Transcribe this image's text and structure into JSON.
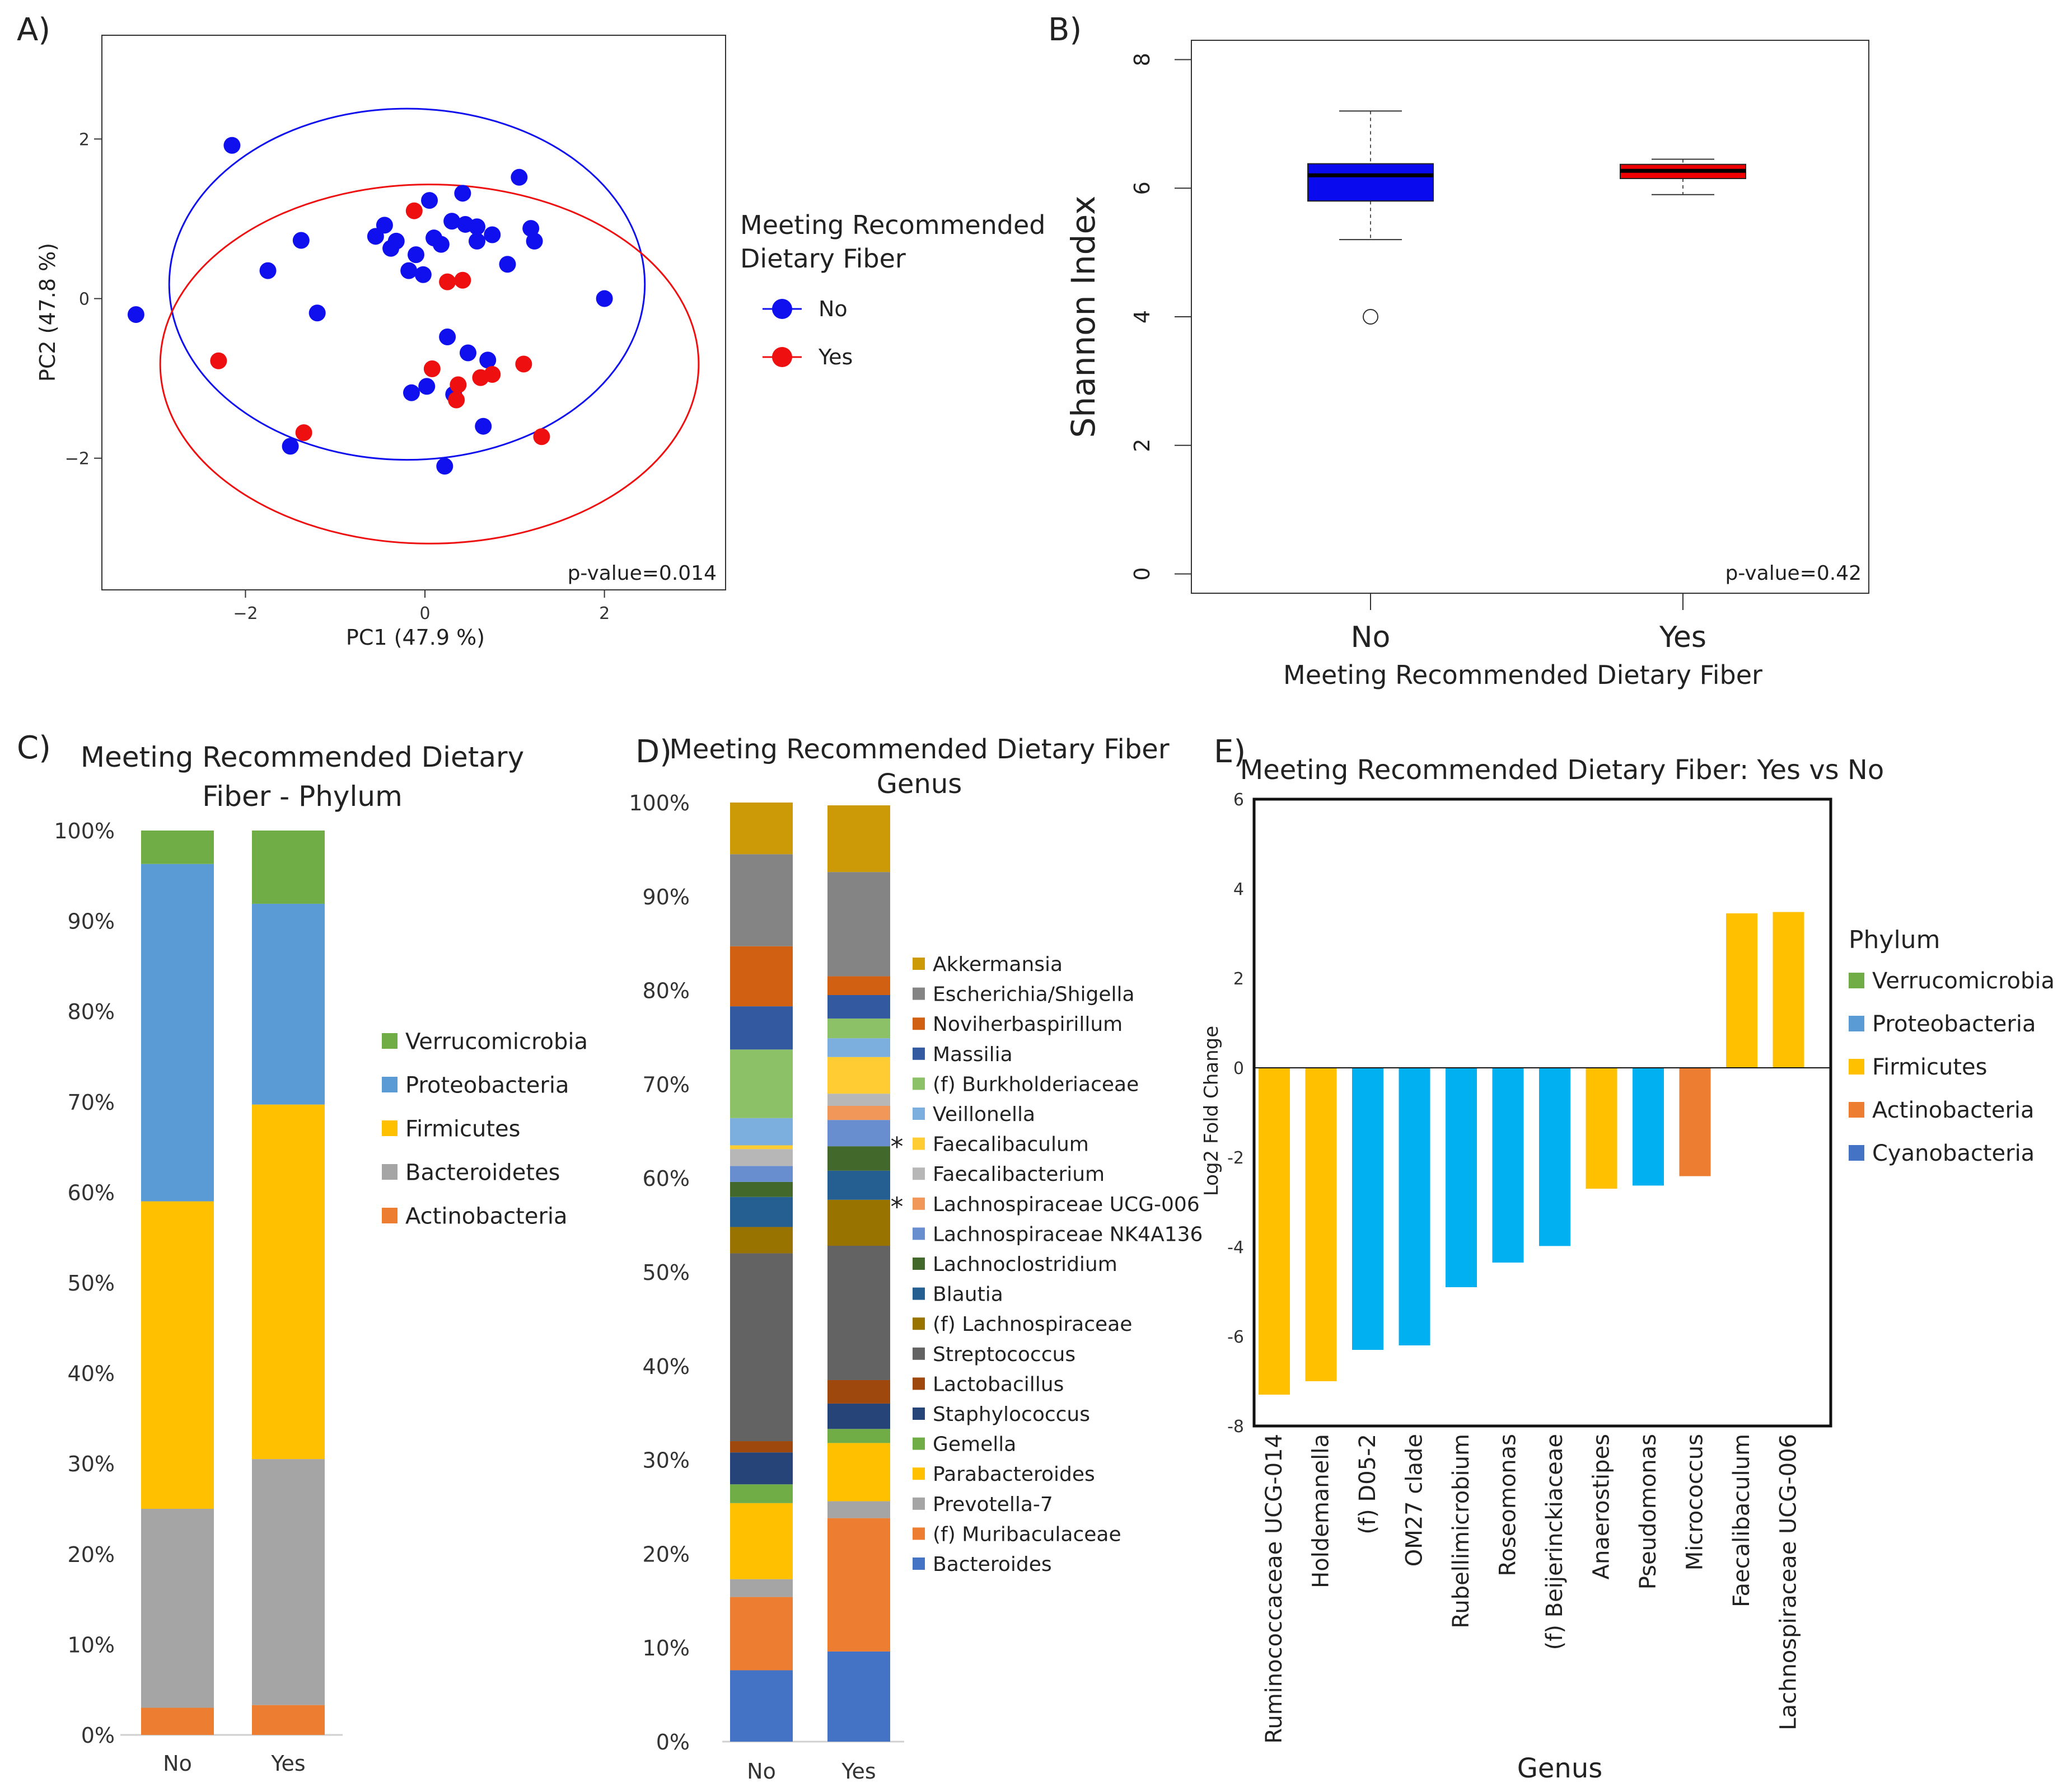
{
  "chart_data": [
    {
      "panel": "A)",
      "type": "scatter",
      "xlabel": "PC1 (47.9 %)",
      "ylabel": "PC2 (47.8 %)",
      "xlim": [
        -3.6,
        3.35
      ],
      "ylim": [
        -3.65,
        3.3
      ],
      "x_ticks": [
        {
          "v": -2,
          "label": "−2"
        },
        {
          "v": 0,
          "label": "0"
        },
        {
          "v": 2,
          "label": "2"
        }
      ],
      "y_ticks": [
        {
          "v": 2,
          "label": "2"
        },
        {
          "v": 0,
          "label": "0"
        },
        {
          "v": -2,
          "label": "−2"
        }
      ],
      "legend_title": "Meeting Recommended Dietary Fiber",
      "annotation": "p-value=0.014",
      "series": [
        {
          "name": "No",
          "color": "#1010ee",
          "ellipse": {
            "cx": -0.2,
            "cy": 0.18,
            "rx": 2.65,
            "ry": 2.2
          },
          "points": [
            [
              -3.22,
              -0.2
            ],
            [
              -2.15,
              1.92
            ],
            [
              -1.75,
              0.35
            ],
            [
              -1.38,
              0.73
            ],
            [
              -1.2,
              -0.18
            ],
            [
              -0.55,
              0.78
            ],
            [
              -0.45,
              0.92
            ],
            [
              -0.38,
              0.63
            ],
            [
              -0.32,
              0.72
            ],
            [
              -0.18,
              0.35
            ],
            [
              -0.1,
              0.55
            ],
            [
              -0.02,
              0.3
            ],
            [
              0.05,
              1.23
            ],
            [
              0.1,
              0.76
            ],
            [
              0.18,
              0.68
            ],
            [
              0.3,
              0.97
            ],
            [
              0.42,
              1.32
            ],
            [
              0.45,
              0.93
            ],
            [
              0.58,
              0.9
            ],
            [
              0.58,
              0.72
            ],
            [
              0.75,
              0.8
            ],
            [
              0.92,
              0.43
            ],
            [
              1.05,
              1.52
            ],
            [
              1.18,
              0.88
            ],
            [
              1.22,
              0.72
            ],
            [
              2.0,
              0.0
            ],
            [
              0.25,
              -0.48
            ],
            [
              0.48,
              -0.68
            ],
            [
              0.7,
              -0.77
            ],
            [
              -0.15,
              -1.18
            ],
            [
              0.02,
              -1.1
            ],
            [
              0.32,
              -1.2
            ],
            [
              0.65,
              -1.6
            ],
            [
              -1.5,
              -1.85
            ],
            [
              0.22,
              -2.1
            ]
          ]
        },
        {
          "name": "Yes",
          "color": "#ee1010",
          "ellipse": {
            "cx": 0.05,
            "cy": -0.82,
            "rx": 3.0,
            "ry": 2.25
          },
          "points": [
            [
              -0.12,
              1.1
            ],
            [
              0.25,
              0.21
            ],
            [
              0.42,
              0.23
            ],
            [
              -2.3,
              -0.78
            ],
            [
              0.08,
              -0.88
            ],
            [
              0.37,
              -1.08
            ],
            [
              0.35,
              -1.27
            ],
            [
              0.62,
              -0.99
            ],
            [
              0.75,
              -0.95
            ],
            [
              1.1,
              -0.82
            ],
            [
              -1.35,
              -1.68
            ],
            [
              1.3,
              -1.73
            ]
          ]
        }
      ]
    },
    {
      "panel": "B)",
      "type": "box",
      "ylabel": "Shannon Index",
      "xlabel": "Meeting Recommended Dietary Fiber",
      "ylim": [
        -0.3,
        8.3
      ],
      "y_ticks": [
        0,
        2,
        4,
        6,
        8
      ],
      "annotation": "p-value=0.42",
      "categories": [
        "No",
        "Yes"
      ],
      "boxes": [
        {
          "name": "No",
          "color": "#0a0aee",
          "whisker_low": 5.2,
          "q1": 5.8,
          "median": 6.2,
          "q3": 6.38,
          "whisker_high": 7.2,
          "outliers": [
            4.0
          ]
        },
        {
          "name": "Yes",
          "color": "#ee0000",
          "whisker_low": 5.9,
          "q1": 6.15,
          "median": 6.27,
          "q3": 6.37,
          "whisker_high": 6.45,
          "outliers": []
        }
      ]
    },
    {
      "panel": "C)",
      "type": "stacked_bar",
      "title_lines": [
        "Meeting Recommended Dietary",
        "Fiber - Phylum"
      ],
      "categories": [
        "No",
        "Yes"
      ],
      "y_ticks": [
        "0%",
        "10%",
        "20%",
        "30%",
        "40%",
        "50%",
        "60%",
        "70%",
        "80%",
        "90%",
        "100%"
      ],
      "legend_order": [
        "Verrucomicrobia",
        "Proteobacteria",
        "Firmicutes",
        "Bacteroidetes",
        "Actinobacteria"
      ],
      "series": [
        {
          "name": "Actinobacteria",
          "color": "#ed7d31",
          "values": [
            3,
            3.3
          ]
        },
        {
          "name": "Bacteroidetes",
          "color": "#a5a5a5",
          "values": [
            22,
            27.2
          ]
        },
        {
          "name": "Firmicutes",
          "color": "#ffc000",
          "values": [
            34,
            39.2
          ]
        },
        {
          "name": "Proteobacteria",
          "color": "#5b9bd5",
          "values": [
            37.3,
            22.2
          ]
        },
        {
          "name": "Verrucomicrobia",
          "color": "#70ad47",
          "values": [
            3.7,
            8.1
          ]
        }
      ]
    },
    {
      "panel": "D)",
      "type": "stacked_bar",
      "title_lines": [
        "Meeting Recommended Dietary Fiber",
        "Genus"
      ],
      "categories": [
        "No",
        "Yes"
      ],
      "y_ticks": [
        "0%",
        "10%",
        "20%",
        "30%",
        "40%",
        "50%",
        "60%",
        "70%",
        "80%",
        "90%",
        "100%"
      ],
      "legend_order": [
        "Akkermansia",
        "Escherichia/Shigella",
        "Noviherbaspirillum",
        "Massilia",
        "(f) Burkholderiaceae",
        "Veillonella",
        "Faecalibaculum",
        "Faecalibacterium",
        "Lachnospiraceae UCG-006",
        "Lachnospiraceae NK4A136",
        "Lachnoclostridium",
        "Blautia",
        "(f) Lachnospiraceae",
        "Streptococcus",
        "Lactobacillus",
        "Staphylococcus",
        "Gemella",
        "Parabacteroides",
        "Prevotella-7",
        "(f) Muribaculaceae",
        "Bacteroides"
      ],
      "starred": [
        "Faecalibaculum",
        "Lachnospiraceae UCG-006"
      ],
      "star_symbol": "*",
      "series": [
        {
          "name": "Bacteroides",
          "color": "#4472c4",
          "values": [
            7.6,
            9.6
          ]
        },
        {
          "name": "(f) Muribaculaceae",
          "color": "#ed7d31",
          "values": [
            7.8,
            14.2
          ]
        },
        {
          "name": "Prevotella-7",
          "color": "#a5a5a5",
          "values": [
            1.9,
            1.8
          ]
        },
        {
          "name": "Parabacteroides",
          "color": "#ffc000",
          "values": [
            8.1,
            6.2
          ]
        },
        {
          "name": "Gemella",
          "color": "#70ad47",
          "values": [
            2.0,
            1.5
          ]
        },
        {
          "name": "Staphylococcus",
          "color": "#264478",
          "values": [
            3.4,
            2.7
          ]
        },
        {
          "name": "Lactobacillus",
          "color": "#9e480e",
          "values": [
            1.2,
            2.5
          ]
        },
        {
          "name": "Streptococcus",
          "color": "#636363",
          "values": [
            20.0,
            14.3
          ]
        },
        {
          "name": "(f) Lachnospiraceae",
          "color": "#997300",
          "values": [
            2.8,
            4.9
          ]
        },
        {
          "name": "Blautia",
          "color": "#255e91",
          "values": [
            3.2,
            3.1
          ]
        },
        {
          "name": "Lachnoclostridium",
          "color": "#43682b",
          "values": [
            1.6,
            2.6
          ]
        },
        {
          "name": "Lachnospiraceae NK4A136",
          "color": "#698ed0",
          "values": [
            1.7,
            2.8
          ]
        },
        {
          "name": "Lachnospiraceae UCG-006",
          "color": "#f1975a",
          "values": [
            0,
            1.5
          ]
        },
        {
          "name": "Faecalibacterium",
          "color": "#b7b7b7",
          "values": [
            1.8,
            1.3
          ]
        },
        {
          "name": "Faecalibaculum",
          "color": "#ffcd33",
          "values": [
            0.4,
            3.9
          ]
        },
        {
          "name": "Veillonella",
          "color": "#7cafdd",
          "values": [
            2.9,
            2.0
          ]
        },
        {
          "name": "(f) Burkholderiaceae",
          "color": "#8cc168",
          "values": [
            7.3,
            2.1
          ]
        },
        {
          "name": "Massilia",
          "color": "#335aa1",
          "values": [
            4.6,
            2.5
          ]
        },
        {
          "name": "Noviherbaspirillum",
          "color": "#d26012",
          "values": [
            6.4,
            2.0
          ]
        },
        {
          "name": "Escherichia/Shigella",
          "color": "#848484",
          "values": [
            9.8,
            11.1
          ]
        },
        {
          "name": "Akkermansia",
          "color": "#cc9a06",
          "values": [
            5.5,
            7.1
          ]
        }
      ]
    },
    {
      "panel": "E)",
      "type": "bar",
      "title": "Meeting Recommended Dietary Fiber: Yes vs No",
      "ylabel": "Log2 Fold Change",
      "xlabel": "Genus",
      "ylim": [
        -8,
        6
      ],
      "y_ticks": [
        {
          "v": 6,
          "label": "6"
        },
        {
          "v": 4,
          "label": "4"
        },
        {
          "v": 2,
          "label": "2"
        },
        {
          "v": 0,
          "label": "0"
        },
        {
          "v": -2,
          "label": "-2"
        },
        {
          "v": -4,
          "label": "-4"
        },
        {
          "v": -6,
          "label": "-6"
        },
        {
          "v": -8,
          "label": "-8"
        }
      ],
      "categories": [
        "Ruminococcaceae UCG-014",
        "Holdemanella",
        "(f) D05-2",
        "OM27 clade",
        "Rubellimicrobium",
        "Roseomonas",
        "(f) Beijerinckiaceae",
        "Anaerostipes",
        "Pseudomonas",
        "Micrococcus",
        "Faecalibaculum",
        "Lachnospiraceae UCG-006"
      ],
      "values": [
        -7.3,
        -7.0,
        -6.3,
        -6.2,
        -4.9,
        -4.35,
        -3.98,
        -2.7,
        -2.63,
        -2.42,
        3.45,
        3.48
      ],
      "bar_phylum": [
        "Firmicutes",
        "Firmicutes",
        "Proteobacteria",
        "Proteobacteria",
        "Proteobacteria",
        "Proteobacteria",
        "Proteobacteria",
        "Firmicutes",
        "Proteobacteria",
        "Actinobacteria",
        "Firmicutes",
        "Firmicutes"
      ],
      "legend_title": "Phylum",
      "legend": [
        {
          "name": "Verrucomicrobia",
          "color": "#70ad47"
        },
        {
          "name": "Proteobacteria",
          "color": "#5b9bd5"
        },
        {
          "name": "Firmicutes",
          "color": "#ffc000"
        },
        {
          "name": "Actinobacteria",
          "color": "#ed7d31"
        },
        {
          "name": "Cyanobacteria",
          "color": "#4472c4"
        }
      ],
      "bar_colors": {
        "Firmicutes": "#ffc000",
        "Proteobacteria": "#00b0f0",
        "Actinobacteria": "#ed7d31"
      }
    }
  ]
}
